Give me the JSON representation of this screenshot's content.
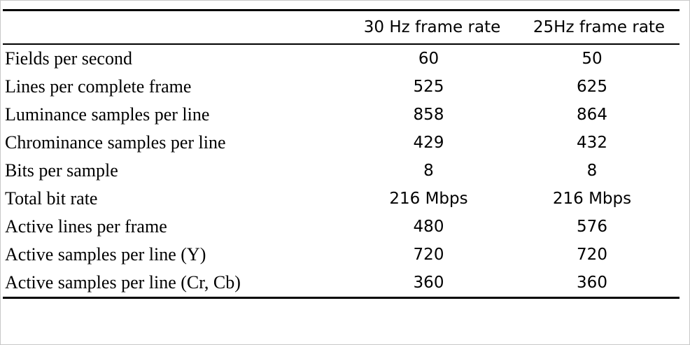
{
  "table": {
    "headers": [
      "",
      "30 Hz frame rate",
      "25Hz frame rate"
    ],
    "rows": [
      {
        "label": "Fields per second",
        "hz30": "60",
        "hz25": "50"
      },
      {
        "label": "Lines per complete frame",
        "hz30": "525",
        "hz25": "625"
      },
      {
        "label": "Luminance samples per line",
        "hz30": "858",
        "hz25": "864"
      },
      {
        "label": "Chrominance samples per line",
        "hz30": "429",
        "hz25": "432"
      },
      {
        "label": "Bits per sample",
        "hz30": "8",
        "hz25": "8"
      },
      {
        "label": "Total bit rate",
        "hz30": "216 Mbps",
        "hz25": "216 Mbps"
      },
      {
        "label": "Active lines per frame",
        "hz30": "480",
        "hz25": "576"
      },
      {
        "label": "Active samples per line (Y)",
        "hz30": "720",
        "hz25": "720"
      },
      {
        "label": "Active samples per line (Cr, Cb)",
        "hz30": "360",
        "hz25": "360"
      }
    ]
  }
}
